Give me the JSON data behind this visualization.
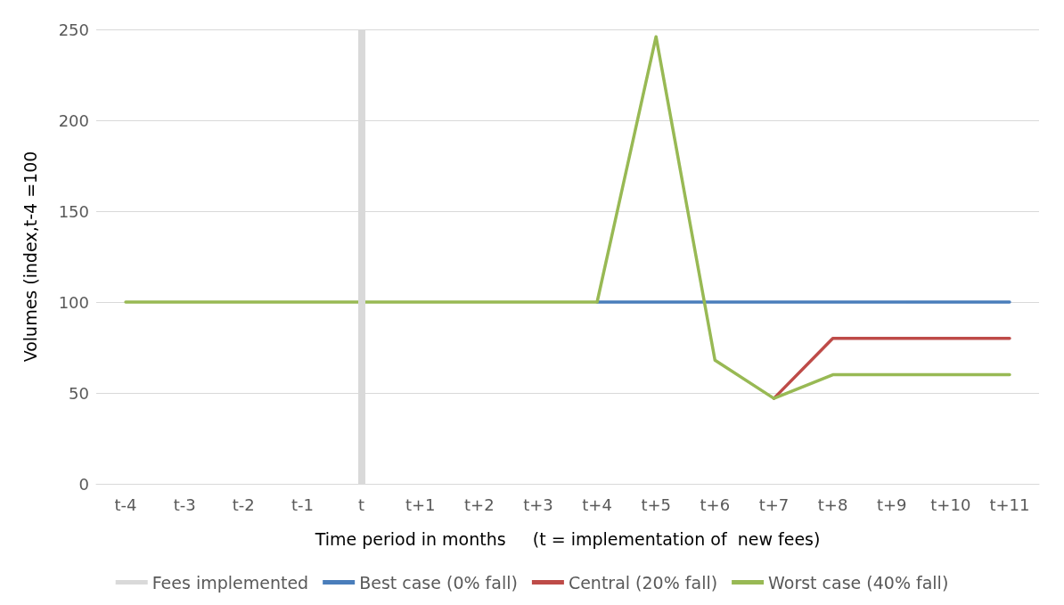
{
  "chart_data": {
    "type": "line",
    "xlabel": "Time period in months     (t = implementation of  new fees)",
    "ylabel": "Volumes (index,t-4 =100",
    "categories": [
      "t-4",
      "t-3",
      "t-2",
      "t-1",
      "t",
      "t+1",
      "t+2",
      "t+3",
      "t+4",
      "t+5",
      "t+6",
      "t+7",
      "t+8",
      "t+9",
      "t+10",
      "t+11"
    ],
    "series": [
      {
        "name": "Best case (0% fall)",
        "color": "#4a7ebb",
        "values": [
          null,
          null,
          null,
          null,
          null,
          null,
          null,
          null,
          100,
          100,
          100,
          100,
          100,
          100,
          100,
          100
        ]
      },
      {
        "name": "Central (20% fall)",
        "color": "#be4b48",
        "values": [
          null,
          null,
          null,
          null,
          null,
          null,
          null,
          null,
          null,
          null,
          null,
          47,
          80,
          80,
          80,
          80
        ]
      },
      {
        "name": "Worst case (40% fall)",
        "color": "#98b954",
        "values": [
          100,
          100,
          100,
          100,
          100,
          100,
          100,
          100,
          100,
          246,
          68,
          47,
          60,
          60,
          60,
          60
        ]
      }
    ],
    "ref_lines": [
      {
        "axis": "x",
        "value": "t",
        "label": "Fees implemented",
        "color": "#d9d9d9"
      }
    ],
    "ylim": [
      0,
      250
    ],
    "yticks": [
      0,
      50,
      100,
      150,
      200,
      250
    ],
    "grid": "y",
    "legend": "bottom",
    "marker": "none",
    "line_style": "solid"
  }
}
